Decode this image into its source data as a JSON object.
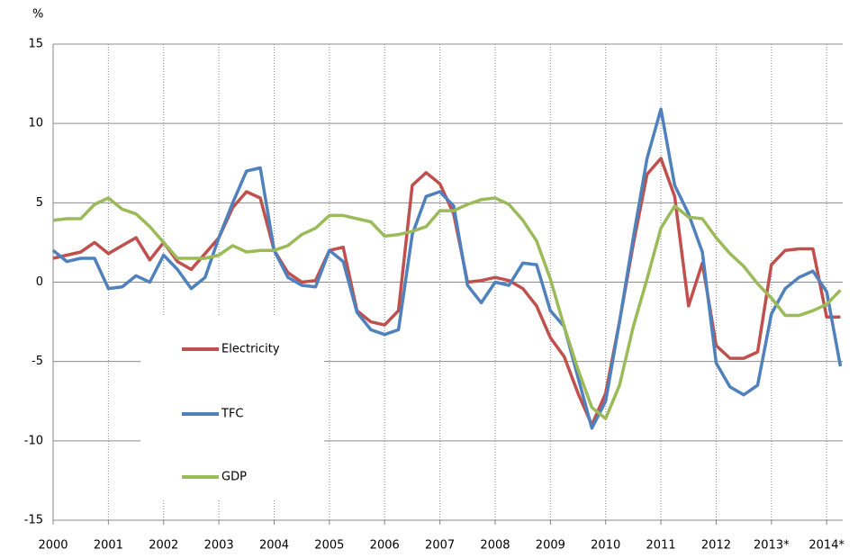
{
  "chart_data": {
    "type": "line",
    "ylabel": "%",
    "x": [
      2000,
      2000.25,
      2000.5,
      2000.75,
      2001,
      2001.25,
      2001.5,
      2001.75,
      2002,
      2002.25,
      2002.5,
      2002.75,
      2003,
      2003.25,
      2003.5,
      2003.75,
      2004,
      2004.25,
      2004.5,
      2004.75,
      2005,
      2005.25,
      2005.5,
      2005.75,
      2006,
      2006.25,
      2006.5,
      2006.75,
      2007,
      2007.25,
      2007.5,
      2007.75,
      2008,
      2008.25,
      2008.5,
      2008.75,
      2009,
      2009.25,
      2009.5,
      2009.75,
      2010,
      2010.25,
      2010.5,
      2010.75,
      2011,
      2011.25,
      2011.5,
      2011.75,
      2012,
      2012.25,
      2012.5,
      2012.75,
      2013,
      2013.25,
      2013.5,
      2013.75,
      2014,
      2014.25
    ],
    "series": [
      {
        "name": "Electricity",
        "color": "#c0504d",
        "values": [
          1.5,
          1.7,
          1.9,
          2.5,
          1.8,
          2.3,
          2.8,
          1.4,
          2.5,
          1.3,
          0.8,
          1.8,
          2.8,
          4.7,
          5.7,
          5.3,
          2.0,
          0.6,
          0,
          0.1,
          2.0,
          2.2,
          -1.8,
          -2.5,
          -2.7,
          -1.8,
          6.1,
          6.9,
          6.2,
          4.3,
          0,
          0.1,
          0.3,
          0.1,
          -0.4,
          -1.5,
          -3.5,
          -4.7,
          -7,
          -9,
          -7,
          -2.5,
          2.4,
          6.8,
          7.8,
          5.4,
          -1.5,
          1.2,
          -4.0,
          -4.8,
          -4.8,
          -4.4,
          1.1,
          2.0,
          2.1,
          2.1,
          -2.2,
          -2.2
        ]
      },
      {
        "name": "TFC",
        "color": "#4f81bd",
        "values": [
          2.0,
          1.3,
          1.5,
          1.5,
          -0.4,
          -0.3,
          0.4,
          0,
          1.7,
          0.8,
          -0.4,
          0.3,
          2.8,
          5.0,
          7.0,
          7.2,
          2.0,
          0.3,
          -0.2,
          -0.3,
          2.0,
          1.3,
          -1.9,
          -3.0,
          -3.3,
          -3.0,
          3.0,
          5.4,
          5.7,
          4.8,
          -0.2,
          -1.3,
          0,
          -0.2,
          1.2,
          1.1,
          -1.8,
          -2.8,
          -6,
          -9.2,
          -7.5,
          -2.5,
          2.8,
          7.8,
          10.9,
          6.1,
          4.3,
          1.9,
          -5.1,
          -6.6,
          -7.1,
          -6.5,
          -2,
          -0.4,
          0.3,
          0.7,
          -0.6,
          -5.3
        ]
      },
      {
        "name": "GDP",
        "color": "#9bbb59",
        "values": [
          3.9,
          4.0,
          4.0,
          4.9,
          5.3,
          4.6,
          4.3,
          3.5,
          2.5,
          1.5,
          1.5,
          1.5,
          1.7,
          2.3,
          1.9,
          2.0,
          2.0,
          2.3,
          3.0,
          3.4,
          4.2,
          4.2,
          4.0,
          3.8,
          2.9,
          3.0,
          3.2,
          3.5,
          4.5,
          4.5,
          4.9,
          5.2,
          5.3,
          4.9,
          3.9,
          2.6,
          0.2,
          -2.8,
          -5.5,
          -7.9,
          -8.6,
          -6.5,
          -2.8,
          0.2,
          3.4,
          4.8,
          4.1,
          4.0,
          2.8,
          1.8,
          1.0,
          -0.1,
          -1.0,
          -2.1,
          -2.1,
          -1.8,
          -1.4,
          -0.5
        ]
      }
    ],
    "xlim": [
      2000,
      2014.29
    ],
    "xticks": [
      2000,
      2001,
      2002,
      2003,
      2004,
      2005,
      2006,
      2007,
      2008,
      2009,
      2010,
      2011,
      2012,
      {
        "value": 2013,
        "label": "2013*"
      },
      {
        "value": 2014,
        "label": "2014*"
      }
    ],
    "ylim": [
      -15,
      15
    ],
    "yticks": [
      15,
      10,
      5,
      0,
      -5,
      -10,
      -15
    ],
    "grid": true
  }
}
